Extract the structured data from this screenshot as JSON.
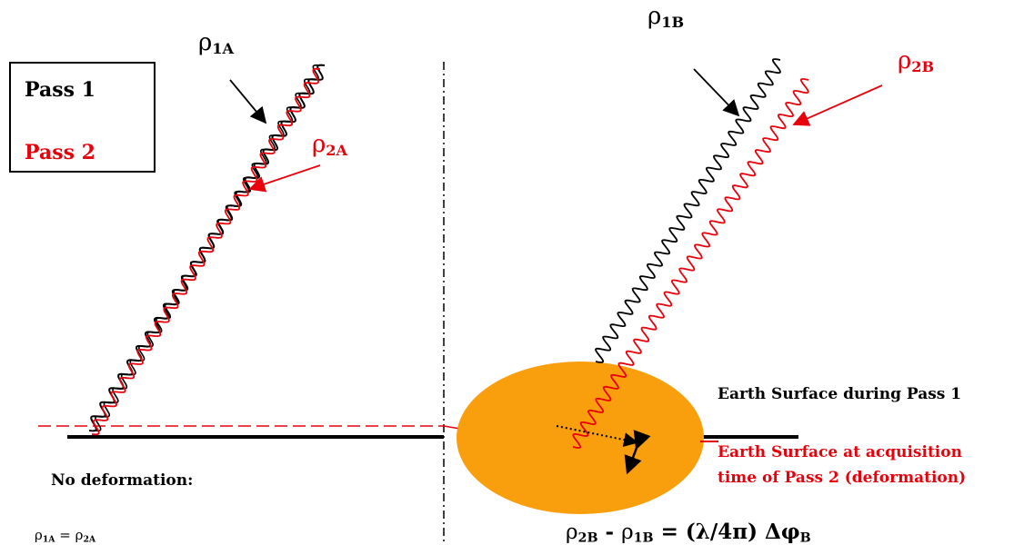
{
  "legend": {
    "pass1": "Pass 1",
    "pass2": "Pass 2",
    "pass1_color": "#000000",
    "pass2_color": "#e8000b"
  },
  "labels": {
    "rho1A": {
      "symbol": "ρ",
      "sub": "1A"
    },
    "rho2A": {
      "symbol": "ρ",
      "sub": "2A"
    },
    "rho1B": {
      "symbol": "ρ",
      "sub": "1B"
    },
    "rho2B": {
      "symbol": "ρ",
      "sub": "2B"
    }
  },
  "surface": {
    "pass1": "Earth Surface during Pass 1",
    "pass2_line1": "Earth Surface at acquisition",
    "pass2_line2": "time of Pass 2 (deformation)"
  },
  "no_deformation": "No deformation:",
  "equation_a": {
    "lhs": "ρ",
    "lhs_sub": "1A",
    "op": " = ",
    "rhs": "ρ",
    "rhs_sub": "2A"
  },
  "equation_b": {
    "t1": "ρ",
    "t1_sub": "2B",
    "minus": " - ",
    "t2": "ρ",
    "t2_sub": "1B",
    "rest": " = (λ/4π) Δφ",
    "rest_sub": "B"
  },
  "colors": {
    "deformation_zone": "#f99f0e",
    "pass2_red": "#e8000b",
    "pass1_black": "#000000"
  }
}
